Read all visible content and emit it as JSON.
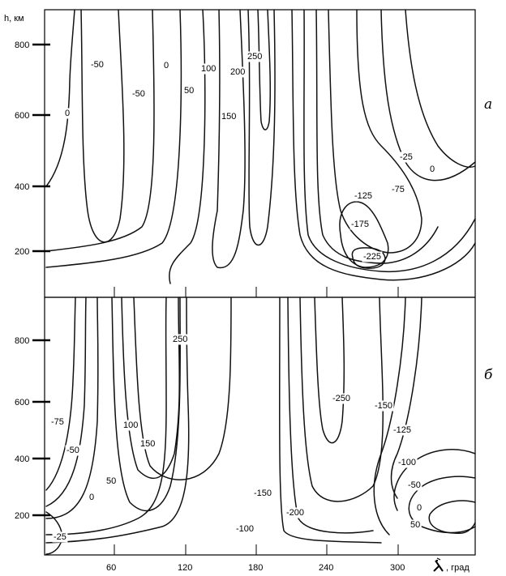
{
  "chart_data": [
    {
      "type": "contour",
      "panel_label": "а",
      "ylabel": "h, км",
      "y_ticks": [
        200,
        400,
        600,
        800
      ],
      "ylim": [
        70,
        950
      ],
      "xlim": [
        0,
        360
      ],
      "contour_labels": [
        "-50",
        "0",
        "-50",
        "0",
        "50",
        "100",
        "200",
        "250",
        "150",
        "-25",
        "0",
        "-75",
        "-125",
        "-175",
        "-225"
      ]
    },
    {
      "type": "contour",
      "panel_label": "б",
      "xlabel": ", град",
      "x_ticks": [
        60,
        120,
        180,
        240,
        300
      ],
      "y_ticks": [
        200,
        400,
        600,
        800
      ],
      "ylim": [
        70,
        950
      ],
      "xlim": [
        0,
        360
      ],
      "contour_labels": [
        "250",
        "-250",
        "-150",
        "-125",
        "-75",
        "-50",
        "100",
        "150",
        "50",
        "0",
        "-25",
        "-150",
        "-200",
        "-100",
        "-100",
        "-50",
        "0",
        "50"
      ]
    }
  ]
}
